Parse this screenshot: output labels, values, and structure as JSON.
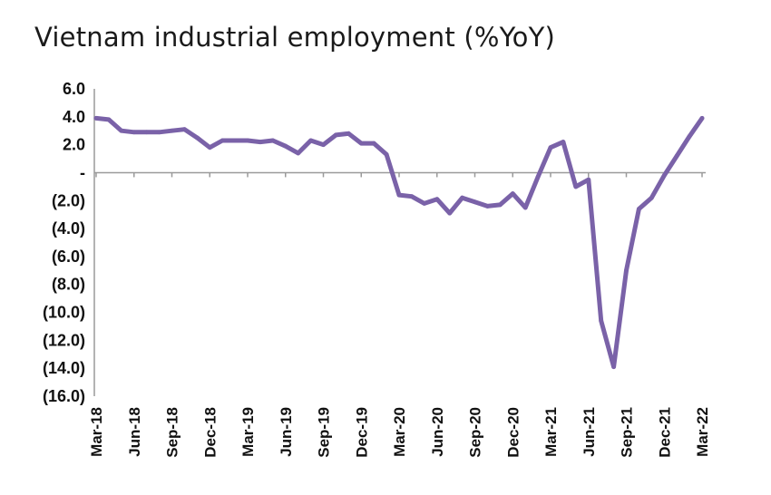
{
  "colors": {
    "series": "#7a62a8",
    "axis": "#9a9a9a",
    "text": "#111111"
  },
  "chart_data": {
    "type": "line",
    "title": "Vietnam industrial employment (%YoY)",
    "xlabel": "",
    "ylabel": "",
    "ylim": [
      -16,
      6
    ],
    "y_ticks": [
      6,
      4,
      2,
      0,
      -2,
      -4,
      -6,
      -8,
      -10,
      -12,
      -14,
      -16
    ],
    "y_tick_labels": [
      "6.0",
      "4.0",
      "2.0",
      "-",
      "(2.0)",
      "(4.0)",
      "(6.0)",
      "(8.0)",
      "(10.0)",
      "(12.0)",
      "(14.0)",
      "(16.0)"
    ],
    "x_tick_labels": [
      "Mar-18",
      "Jun-18",
      "Sep-18",
      "Dec-18",
      "Mar-19",
      "Jun-19",
      "Sep-19",
      "Dec-19",
      "Mar-20",
      "Jun-20",
      "Sep-20",
      "Dec-20",
      "Mar-21",
      "Jun-21",
      "Sep-21",
      "Dec-21",
      "Mar-22"
    ],
    "x": [
      "Mar-18",
      "Apr-18",
      "May-18",
      "Jun-18",
      "Jul-18",
      "Aug-18",
      "Sep-18",
      "Oct-18",
      "Nov-18",
      "Dec-18",
      "Jan-19",
      "Feb-19",
      "Mar-19",
      "Apr-19",
      "May-19",
      "Jun-19",
      "Jul-19",
      "Aug-19",
      "Sep-19",
      "Oct-19",
      "Nov-19",
      "Dec-19",
      "Jan-20",
      "Feb-20",
      "Mar-20",
      "Apr-20",
      "May-20",
      "Jun-20",
      "Jul-20",
      "Aug-20",
      "Sep-20",
      "Oct-20",
      "Nov-20",
      "Dec-20",
      "Jan-21",
      "Feb-21",
      "Mar-21",
      "Apr-21",
      "May-21",
      "Jun-21",
      "Jul-21",
      "Aug-21",
      "Sep-21",
      "Oct-21",
      "Nov-21",
      "Dec-21",
      "Jan-22",
      "Feb-22",
      "Mar-22"
    ],
    "series": [
      {
        "values": [
          3.9,
          3.8,
          3.0,
          2.9,
          2.9,
          2.9,
          3.0,
          3.1,
          2.5,
          1.8,
          2.3,
          2.3,
          2.3,
          2.2,
          2.3,
          1.9,
          1.4,
          2.3,
          2.0,
          2.7,
          2.8,
          2.1,
          2.1,
          1.3,
          -1.6,
          -1.7,
          -2.2,
          -1.9,
          -2.9,
          -1.8,
          -2.1,
          -2.4,
          -2.3,
          -1.5,
          -2.5,
          -0.3,
          1.8,
          2.2,
          -1.0,
          -0.5,
          -10.6,
          -13.9,
          -7.0,
          -2.6,
          -1.8,
          -0.2,
          1.2,
          2.6,
          3.9
        ]
      }
    ]
  }
}
